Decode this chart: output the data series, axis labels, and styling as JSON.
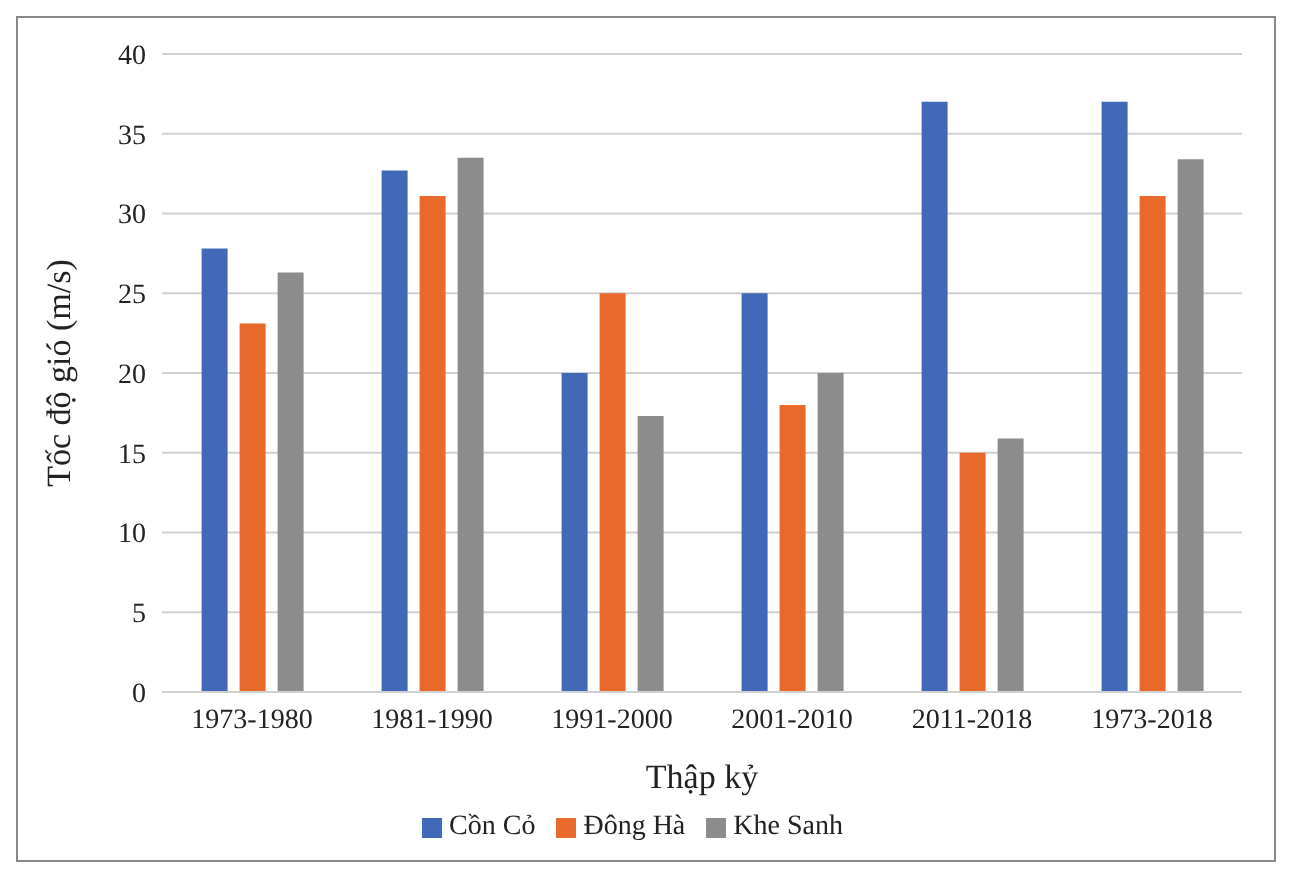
{
  "chart_data": {
    "type": "bar",
    "xlabel": "Thập kỷ",
    "ylabel": "Tốc độ gió (m/s)",
    "categories": [
      "1973-1980",
      "1981-1990",
      "1991-2000",
      "2001-2010",
      "2011-2018",
      "1973-2018"
    ],
    "series": [
      {
        "name": "Cồn Cỏ",
        "color": "#4169b8",
        "values": [
          27.8,
          32.7,
          20,
          25,
          37,
          37
        ]
      },
      {
        "name": "Đông Hà",
        "color": "#e8692a",
        "values": [
          23.1,
          31.1,
          25,
          18,
          15,
          31.1
        ]
      },
      {
        "name": "Khe Sanh",
        "color": "#8c8c8c",
        "values": [
          26.3,
          33.5,
          17.3,
          20,
          15.9,
          33.4
        ]
      }
    ],
    "ylim": [
      0,
      40
    ],
    "yticks": [
      0,
      5,
      10,
      15,
      20,
      25,
      30,
      35,
      40
    ],
    "grid": "y",
    "legend": "bottom"
  }
}
